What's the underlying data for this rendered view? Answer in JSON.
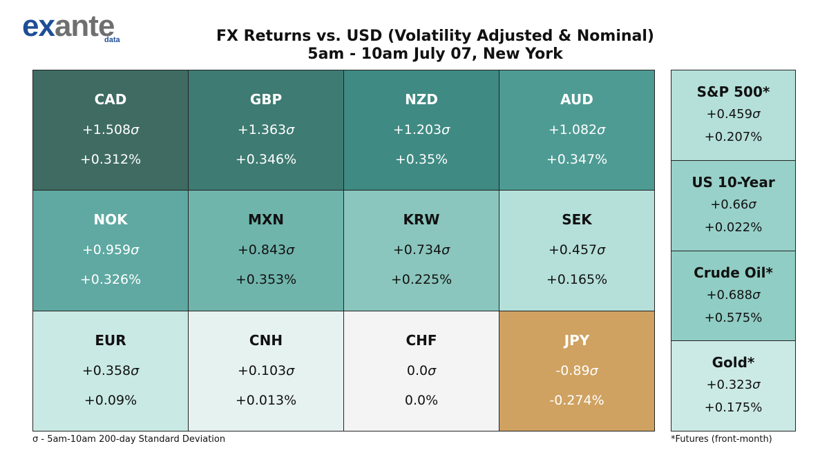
{
  "logo": {
    "part1": "ex",
    "part2": "ante",
    "sub": "data"
  },
  "chart_data": {
    "type": "heatmap",
    "title": "FX Returns vs. USD (Volatility Adjusted & Nominal)",
    "subtitle": "5am - 10am July 07, New York",
    "sigma_symbol": "σ",
    "currencies": [
      {
        "name": "CAD",
        "sigma": "+1.508",
        "pct": "+0.312%",
        "bg": "#3f6b62",
        "fg": "#ffffff"
      },
      {
        "name": "GBP",
        "sigma": "+1.363",
        "pct": "+0.346%",
        "bg": "#3e7b72",
        "fg": "#ffffff"
      },
      {
        "name": "NZD",
        "sigma": "+1.203",
        "pct": "+0.35%",
        "bg": "#3f8a83",
        "fg": "#ffffff"
      },
      {
        "name": "AUD",
        "sigma": "+1.082",
        "pct": "+0.347%",
        "bg": "#4e9b94",
        "fg": "#ffffff"
      },
      {
        "name": "NOK",
        "sigma": "+0.959",
        "pct": "+0.326%",
        "bg": "#5fa9a2",
        "fg": "#ffffff"
      },
      {
        "name": "MXN",
        "sigma": "+0.843",
        "pct": "+0.353%",
        "bg": "#70b5ac",
        "fg": "#111111"
      },
      {
        "name": "KRW",
        "sigma": "+0.734",
        "pct": "+0.225%",
        "bg": "#8ac6bd",
        "fg": "#111111"
      },
      {
        "name": "SEK",
        "sigma": "+0.457",
        "pct": "+0.165%",
        "bg": "#b5e0da",
        "fg": "#111111"
      },
      {
        "name": "EUR",
        "sigma": "+0.358",
        "pct": "+0.09%",
        "bg": "#c9e9e4",
        "fg": "#111111"
      },
      {
        "name": "CNH",
        "sigma": "+0.103",
        "pct": "+0.013%",
        "bg": "#e6f2f0",
        "fg": "#111111"
      },
      {
        "name": "CHF",
        "sigma": "0.0",
        "pct": "0.0%",
        "bg": "#f4f4f4",
        "fg": "#111111"
      },
      {
        "name": "JPY",
        "sigma": "-0.89",
        "pct": "-0.274%",
        "bg": "#cfa261",
        "fg": "#ffffff"
      }
    ],
    "side_assets": [
      {
        "name": "S&P 500*",
        "sigma": "+0.459",
        "pct": "+0.207%",
        "bg": "#b5e0da",
        "fg": "#111111"
      },
      {
        "name": "US 10-Year",
        "sigma": "+0.66",
        "pct": "+0.022%",
        "bg": "#98d1c9",
        "fg": "#111111"
      },
      {
        "name": "Crude Oil*",
        "sigma": "+0.688",
        "pct": "+0.575%",
        "bg": "#90cdc4",
        "fg": "#111111"
      },
      {
        "name": "Gold*",
        "sigma": "+0.323",
        "pct": "+0.175%",
        "bg": "#cbeae5",
        "fg": "#111111"
      }
    ],
    "footnote_left": "σ - 5am-10am 200-day Standard Deviation",
    "footnote_right": "*Futures (front-month)"
  }
}
